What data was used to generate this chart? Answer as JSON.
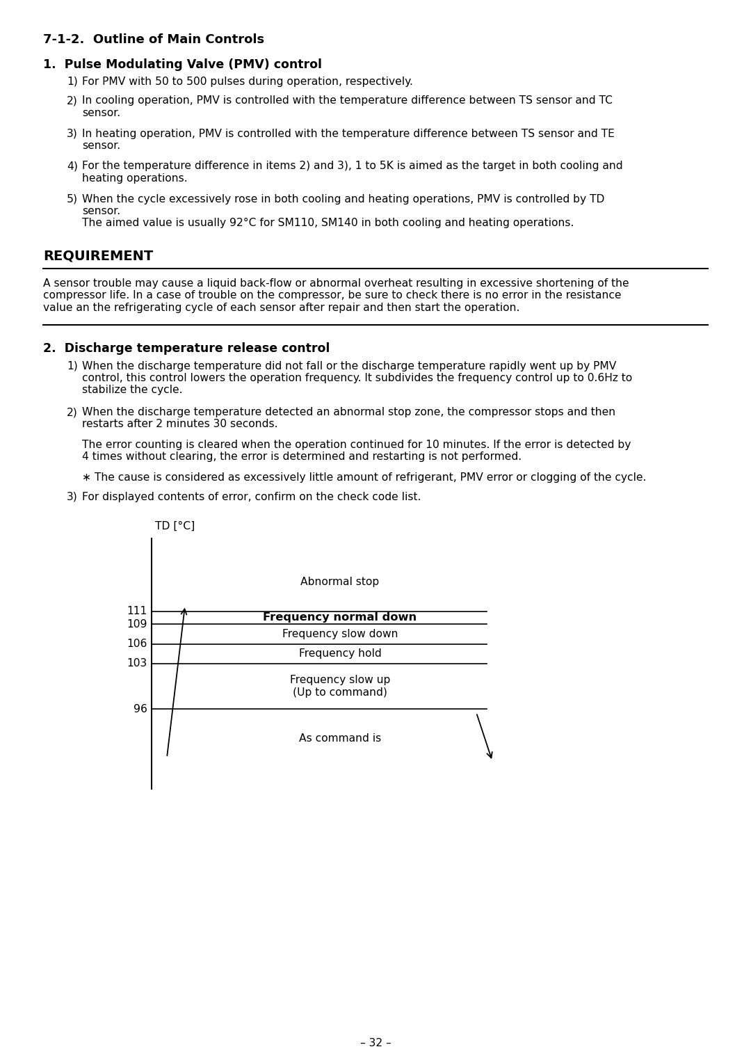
{
  "title": "7-1-2.  Outline of Main Controls",
  "section1_header": "1.  Pulse Modulating Valve (PMV) control",
  "section1_items": [
    {
      "num": "1)",
      "text": "For PMV with 50 to 500 pulses during operation, respectively."
    },
    {
      "num": "2)",
      "text": "In cooling operation, PMV is controlled with the temperature difference between TS sensor and TC\nsensor."
    },
    {
      "num": "3)",
      "text": "In heating operation, PMV is controlled with the temperature difference between TS sensor and TE\nsensor."
    },
    {
      "num": "4)",
      "text": "For the temperature difference in items 2) and 3), 1 to 5K is aimed as the target in both cooling and\nheating operations."
    },
    {
      "num": "5)",
      "text": "When the cycle excessively rose in both cooling and heating operations, PMV is controlled by TD\nsensor.\nThe aimed value is usually 92°C for SM110, SM140 in both cooling and heating operations."
    }
  ],
  "requirement_header": "REQUIREMENT",
  "requirement_text": "A sensor trouble may cause a liquid back-flow or abnormal overheat resulting in excessive shortening of the\ncompressor life. In a case of trouble on the compressor, be sure to check there is no error in the resistance\nvalue an the refrigerating cycle of each sensor after repair and then start the operation.",
  "section2_header": "2.  Discharge temperature release control",
  "section2_items": [
    {
      "num": "1)",
      "text": "When the discharge temperature did not fall or the discharge temperature rapidly went up by PMV\ncontrol, this control lowers the operation frequency. It subdivides the frequency control up to 0.6Hz to\nstabilize the cycle."
    },
    {
      "num": "2)",
      "text": "When the discharge temperature detected an abnormal stop zone, the compressor stops and then\nrestarts after 2 minutes 30 seconds."
    },
    {
      "num": "",
      "text": "The error counting is cleared when the operation continued for 10 minutes. If the error is detected by\n4 times without clearing, the error is determined and restarting is not performed."
    },
    {
      "num": "",
      "text": "∗ The cause is considered as excessively little amount of refrigerant, PMV error or clogging of the cycle."
    },
    {
      "num": "3)",
      "text": "For displayed contents of error, confirm on the check code list."
    }
  ],
  "diagram_ylabel": "TD [°C]",
  "diagram_levels": [
    111,
    109,
    106,
    103,
    96
  ],
  "diagram_labels": [
    "Abnormal stop",
    "Frequency normal down",
    "Frequency slow down",
    "Frequency hold",
    "Frequency slow up\n(Up to command)",
    "As command is"
  ],
  "page_number": "– 32 –",
  "background_color": "#ffffff"
}
